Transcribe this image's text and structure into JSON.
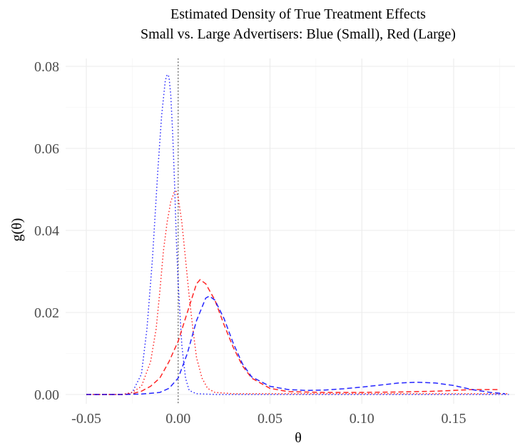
{
  "chart_data": {
    "type": "line",
    "title": "Estimated Density of True Treatment Effects",
    "subtitle": "Small vs. Large Advertisers: Blue (Small), Red (Large)",
    "xlabel": "θ",
    "ylabel": "g(θ)",
    "xlim": [
      -0.05,
      0.18
    ],
    "ylim": [
      0,
      0.08
    ],
    "x_ticks": [
      -0.05,
      0.0,
      0.05,
      0.1,
      0.15
    ],
    "x_tick_labels": [
      "-0.05",
      "0.00",
      "0.05",
      "0.10",
      "0.15"
    ],
    "y_ticks": [
      0.0,
      0.02,
      0.04,
      0.06,
      0.08
    ],
    "y_tick_labels": [
      "0.00",
      "0.02",
      "0.04",
      "0.06",
      "0.08"
    ],
    "grid": true,
    "legend": "none",
    "vline": {
      "x": 0,
      "style": "dotted",
      "color": "#444444"
    },
    "series": [
      {
        "color": "#0000ff",
        "dash": "dotted",
        "points": [
          [
            -0.05,
            0
          ],
          [
            -0.03,
            0
          ],
          [
            -0.025,
            0.0005
          ],
          [
            -0.02,
            0.005
          ],
          [
            -0.017,
            0.016
          ],
          [
            -0.014,
            0.033
          ],
          [
            -0.011,
            0.055
          ],
          [
            -0.009,
            0.068
          ],
          [
            -0.007,
            0.0765
          ],
          [
            -0.006,
            0.078
          ],
          [
            -0.005,
            0.0775
          ],
          [
            -0.004,
            0.073
          ],
          [
            -0.003,
            0.064
          ],
          [
            -0.002,
            0.052
          ],
          [
            -0.001,
            0.038
          ],
          [
            0.0,
            0.027
          ],
          [
            0.002,
            0.012
          ],
          [
            0.004,
            0.004
          ],
          [
            0.006,
            0.001
          ],
          [
            0.01,
            0.0002
          ],
          [
            0.02,
            0
          ],
          [
            0.18,
            0
          ]
        ]
      },
      {
        "color": "#ff0000",
        "dash": "dotted",
        "points": [
          [
            -0.05,
            0
          ],
          [
            -0.03,
            0
          ],
          [
            -0.025,
            0.0005
          ],
          [
            -0.02,
            0.002
          ],
          [
            -0.015,
            0.008
          ],
          [
            -0.012,
            0.016
          ],
          [
            -0.01,
            0.025
          ],
          [
            -0.008,
            0.035
          ],
          [
            -0.006,
            0.042
          ],
          [
            -0.004,
            0.047
          ],
          [
            -0.002,
            0.0495
          ],
          [
            -0.001,
            0.0495
          ],
          [
            0.0,
            0.048
          ],
          [
            0.002,
            0.042
          ],
          [
            0.004,
            0.033
          ],
          [
            0.006,
            0.024
          ],
          [
            0.008,
            0.016
          ],
          [
            0.01,
            0.009
          ],
          [
            0.013,
            0.004
          ],
          [
            0.016,
            0.0015
          ],
          [
            0.02,
            0.0005
          ],
          [
            0.03,
            0.0002
          ],
          [
            0.06,
            0.0002
          ],
          [
            0.1,
            0.0002
          ],
          [
            0.18,
            0.0002
          ]
        ]
      },
      {
        "color": "#ff0000",
        "dash": "dashed",
        "points": [
          [
            -0.05,
            0
          ],
          [
            -0.03,
            0
          ],
          [
            -0.025,
            0.0002
          ],
          [
            -0.02,
            0.0008
          ],
          [
            -0.015,
            0.002
          ],
          [
            -0.01,
            0.004
          ],
          [
            -0.005,
            0.008
          ],
          [
            0.0,
            0.013
          ],
          [
            0.005,
            0.02
          ],
          [
            0.01,
            0.027
          ],
          [
            0.012,
            0.028
          ],
          [
            0.015,
            0.027
          ],
          [
            0.02,
            0.023
          ],
          [
            0.025,
            0.017
          ],
          [
            0.03,
            0.0115
          ],
          [
            0.035,
            0.007
          ],
          [
            0.04,
            0.004
          ],
          [
            0.05,
            0.0015
          ],
          [
            0.06,
            0.0007
          ],
          [
            0.08,
            0.0005
          ],
          [
            0.1,
            0.0005
          ],
          [
            0.12,
            0.0006
          ],
          [
            0.14,
            0.0008
          ],
          [
            0.16,
            0.0012
          ],
          [
            0.175,
            0.0012
          ]
        ]
      },
      {
        "color": "#0000ff",
        "dash": "dashed",
        "points": [
          [
            -0.05,
            0
          ],
          [
            -0.03,
            0
          ],
          [
            -0.02,
            0.0001
          ],
          [
            -0.01,
            0.0005
          ],
          [
            -0.005,
            0.0015
          ],
          [
            0.0,
            0.004
          ],
          [
            0.005,
            0.01
          ],
          [
            0.01,
            0.018
          ],
          [
            0.015,
            0.0235
          ],
          [
            0.017,
            0.024
          ],
          [
            0.02,
            0.023
          ],
          [
            0.025,
            0.0185
          ],
          [
            0.03,
            0.0125
          ],
          [
            0.035,
            0.0075
          ],
          [
            0.04,
            0.0043
          ],
          [
            0.05,
            0.002
          ],
          [
            0.06,
            0.0012
          ],
          [
            0.07,
            0.001
          ],
          [
            0.08,
            0.0011
          ],
          [
            0.09,
            0.0014
          ],
          [
            0.1,
            0.0018
          ],
          [
            0.11,
            0.0023
          ],
          [
            0.12,
            0.0028
          ],
          [
            0.13,
            0.003
          ],
          [
            0.14,
            0.0028
          ],
          [
            0.15,
            0.0022
          ],
          [
            0.16,
            0.0012
          ],
          [
            0.17,
            0.0005
          ],
          [
            0.178,
            0.0002
          ]
        ]
      }
    ]
  }
}
